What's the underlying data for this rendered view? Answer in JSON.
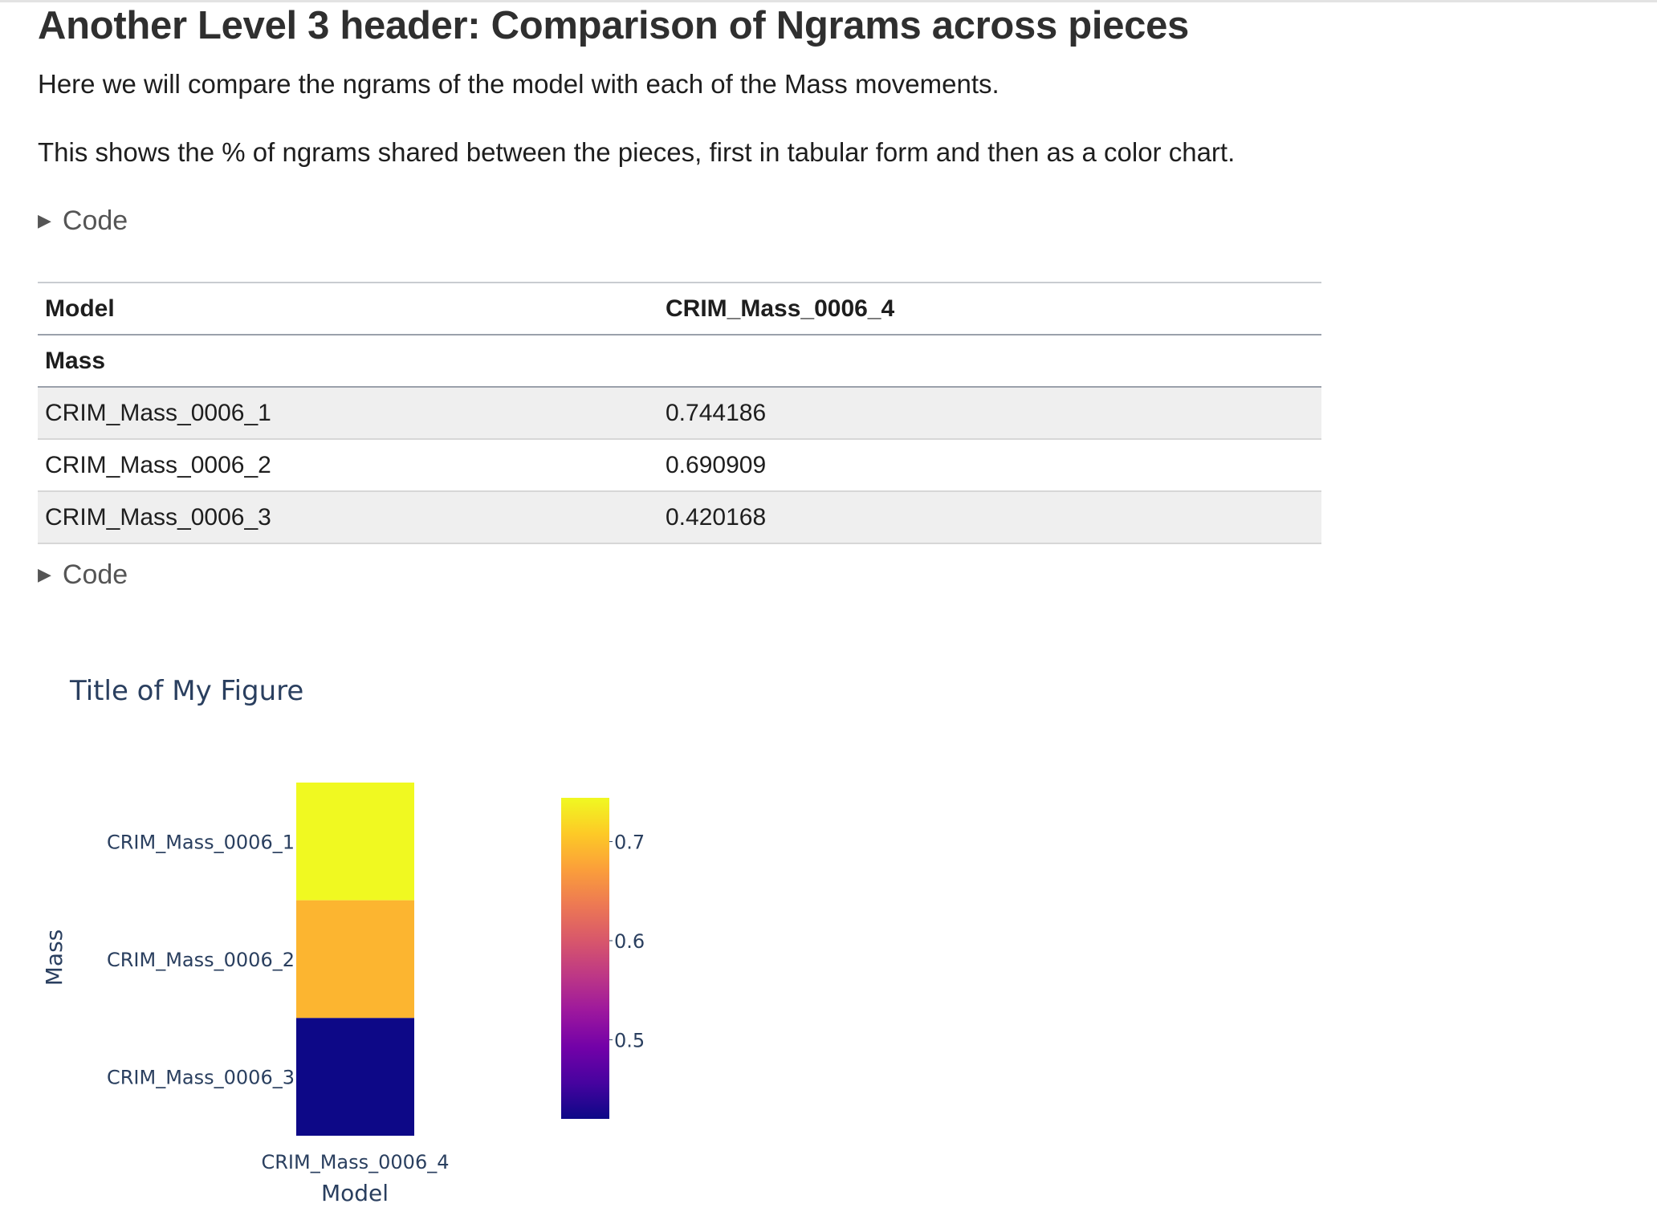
{
  "header": {
    "title": "Another Level 3 header: Comparison of Ngrams across pieces"
  },
  "paragraphs": [
    "Here we will compare the ngrams of the model with each of the Mass movements.",
    "This shows the % of ngrams shared between the pieces, first in tabular form and then as a color chart."
  ],
  "code_toggles": [
    "Code",
    "Code"
  ],
  "table": {
    "column_header_index": "Model",
    "column_header_value": "CRIM_Mass_0006_4",
    "index_name": "Mass",
    "rows": [
      {
        "mass": "CRIM_Mass_0006_1",
        "value": "0.744186"
      },
      {
        "mass": "CRIM_Mass_0006_2",
        "value": "0.690909"
      },
      {
        "mass": "CRIM_Mass_0006_3",
        "value": "0.420168"
      }
    ]
  },
  "chart_data": {
    "type": "heatmap",
    "title": "Title of My Figure",
    "xlabel": "Model",
    "ylabel": "Mass",
    "x": [
      "CRIM_Mass_0006_4"
    ],
    "y": [
      "CRIM_Mass_0006_1",
      "CRIM_Mass_0006_2",
      "CRIM_Mass_0006_3"
    ],
    "z": [
      [
        0.744186
      ],
      [
        0.690909
      ],
      [
        0.420168
      ]
    ],
    "colorscale": "plasma",
    "colorbar": {
      "range": [
        0.420168,
        0.744186
      ],
      "ticks": [
        0.5,
        0.6,
        0.7
      ],
      "tick_labels": [
        "0.5",
        "0.6",
        "0.7"
      ]
    }
  }
}
